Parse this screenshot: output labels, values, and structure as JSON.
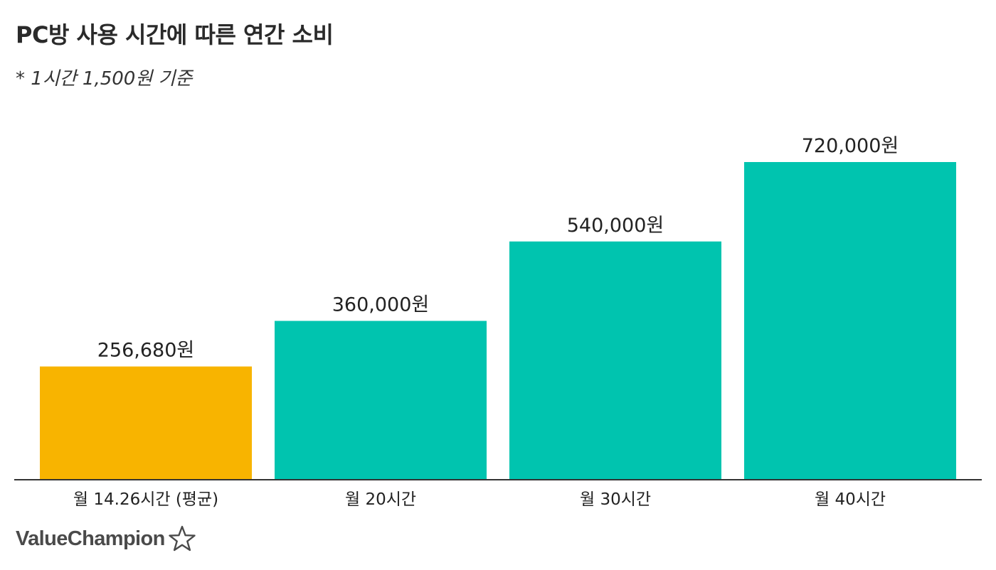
{
  "chart_data": {
    "type": "bar",
    "title": "PC방 사용 시간에 따른 연간 소비",
    "subtitle": "* 1시간 1,500원 기준",
    "categories": [
      "월 14.26시간 (평균)",
      "월 20시간",
      "월 30시간",
      "월 40시간"
    ],
    "values": [
      256680,
      360000,
      540000,
      720000
    ],
    "value_labels": [
      "256,680원",
      "360,000원",
      "540,000원",
      "720,000원"
    ],
    "bar_colors": [
      "#F8B400",
      "#00C4AF",
      "#00C4AF",
      "#00C4AF"
    ],
    "ylim": [
      0,
      720000
    ],
    "grid": false,
    "legend": "none"
  },
  "branding": {
    "name": "ValueChampion",
    "icon": "star-outline-icon",
    "color": "#4a4a4a"
  }
}
